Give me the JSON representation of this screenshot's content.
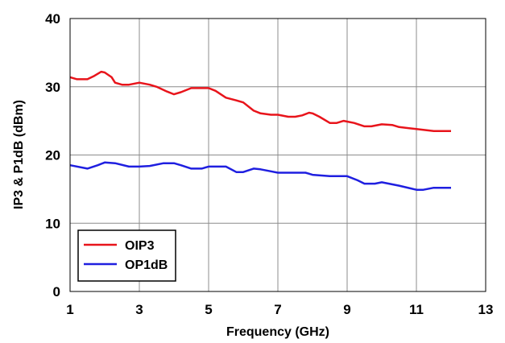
{
  "chart_data": {
    "type": "line",
    "xlabel": "Frequency (GHz)",
    "ylabel": "IP3 & P1dB (dBm)",
    "xlim": [
      1,
      13
    ],
    "ylim": [
      0,
      40
    ],
    "x_ticks": [
      1,
      3,
      5,
      7,
      9,
      11,
      13
    ],
    "y_ticks": [
      0,
      10,
      20,
      30,
      40
    ],
    "grid": true,
    "legend_position": "bottom-left",
    "series": [
      {
        "name": "OIP3",
        "color": "#e8141b",
        "x": [
          1.0,
          1.2,
          1.5,
          1.7,
          1.9,
          2.0,
          2.2,
          2.3,
          2.5,
          2.7,
          3.0,
          3.3,
          3.5,
          3.8,
          4.0,
          4.2,
          4.5,
          4.8,
          5.0,
          5.2,
          5.5,
          5.8,
          6.0,
          6.3,
          6.5,
          6.8,
          7.0,
          7.3,
          7.5,
          7.7,
          7.9,
          8.0,
          8.2,
          8.5,
          8.7,
          8.9,
          9.0,
          9.2,
          9.5,
          9.7,
          10.0,
          10.3,
          10.5,
          11.0,
          11.5,
          12.0
        ],
        "values": [
          31.4,
          31.1,
          31.1,
          31.6,
          32.2,
          32.1,
          31.4,
          30.6,
          30.3,
          30.3,
          30.6,
          30.3,
          30.0,
          29.3,
          28.9,
          29.2,
          29.8,
          29.8,
          29.8,
          29.4,
          28.4,
          28.0,
          27.7,
          26.5,
          26.1,
          25.9,
          25.9,
          25.6,
          25.6,
          25.8,
          26.2,
          26.1,
          25.6,
          24.7,
          24.7,
          25.0,
          24.9,
          24.7,
          24.2,
          24.2,
          24.5,
          24.4,
          24.1,
          23.8,
          23.5,
          23.5
        ]
      },
      {
        "name": "OP1dB",
        "color": "#1f1fe0",
        "x": [
          1.0,
          1.5,
          1.8,
          2.0,
          2.3,
          2.7,
          3.0,
          3.3,
          3.7,
          4.0,
          4.2,
          4.5,
          4.8,
          5.0,
          5.5,
          5.8,
          6.0,
          6.3,
          6.5,
          6.8,
          7.0,
          7.5,
          7.8,
          8.0,
          8.5,
          9.0,
          9.3,
          9.5,
          9.8,
          10.0,
          10.5,
          11.0,
          11.2,
          11.5,
          12.0
        ],
        "values": [
          18.5,
          18.0,
          18.5,
          18.9,
          18.8,
          18.3,
          18.3,
          18.4,
          18.8,
          18.8,
          18.5,
          18.0,
          18.0,
          18.3,
          18.3,
          17.5,
          17.5,
          18.0,
          17.9,
          17.6,
          17.4,
          17.4,
          17.4,
          17.1,
          16.9,
          16.9,
          16.3,
          15.8,
          15.8,
          16.0,
          15.5,
          14.9,
          14.9,
          15.2,
          15.2
        ]
      }
    ]
  }
}
